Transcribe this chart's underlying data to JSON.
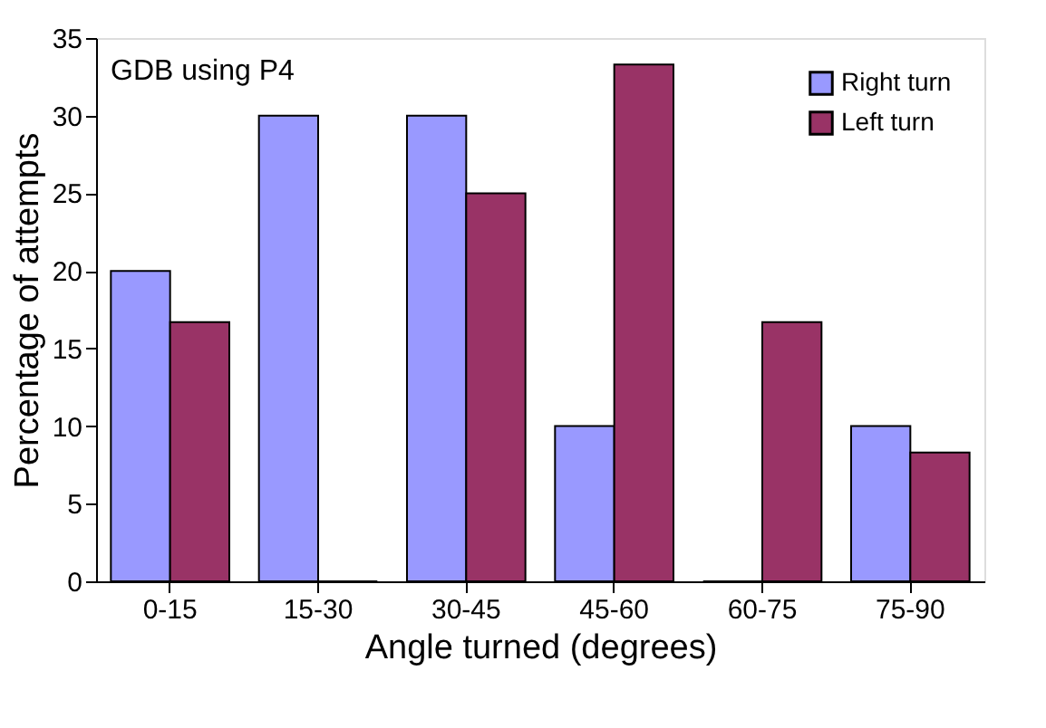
{
  "chart_data": {
    "type": "bar",
    "xlabel": "Angle turned (degrees)",
    "ylabel": "Percentage of attempts",
    "categories": [
      "0-15",
      "15-30",
      "30-45",
      "45-60",
      "60-75",
      "75-90"
    ],
    "series": [
      {
        "name": "Right turn",
        "color": "#9999ff",
        "values": [
          20,
          30,
          30,
          10,
          0,
          10
        ]
      },
      {
        "name": "Left turn",
        "color": "#993366",
        "values": [
          16.7,
          0,
          25,
          33.3,
          16.7,
          8.3
        ]
      }
    ],
    "ylim": [
      0,
      35
    ],
    "yticks": [
      0,
      5,
      10,
      15,
      20,
      25,
      30,
      35
    ],
    "grid": false,
    "legend": "top right",
    "annotations": [
      "GDB using P4"
    ]
  }
}
